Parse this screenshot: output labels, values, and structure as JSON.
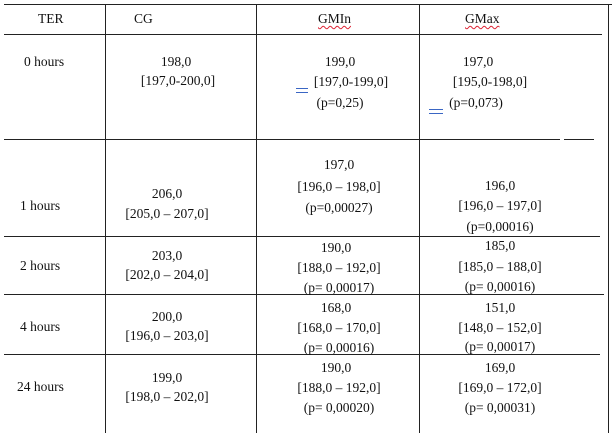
{
  "headers": {
    "ter": "TER",
    "cg": "CG",
    "gmin": "GMIn",
    "gmax": "GMax"
  },
  "rows": [
    {
      "ter": "0 hours",
      "cg": [
        "198,0",
        "[197,0-200,0]"
      ],
      "gmin": [
        "199,0",
        "[197,0-199,0]",
        "(p=0,25)"
      ],
      "gmax": [
        "197,0",
        "[195,0-198,0]",
        "(p=0,073)"
      ]
    },
    {
      "ter": "1 hours",
      "cg": [
        "206,0",
        "[205,0 – 207,0]"
      ],
      "gmin": [
        "197,0",
        "[196,0 – 198,0]",
        "(p=0,00027)"
      ],
      "gmax": [
        "196,0",
        "[196,0 – 197,0]",
        "(p=0,00016)"
      ]
    },
    {
      "ter": "2 hours",
      "cg": [
        "203,0",
        "[202,0 – 204,0]"
      ],
      "gmin": [
        "190,0",
        "[188,0 – 192,0]",
        "(p= 0,00017)"
      ],
      "gmax": [
        "185,0",
        "[185,0 – 188,0]",
        "(p= 0,00016)"
      ]
    },
    {
      "ter": "4 hours",
      "cg": [
        "200,0",
        "[196,0 – 203,0]"
      ],
      "gmin": [
        "168,0",
        "[168,0 – 170,0]",
        "(p= 0,00016)"
      ],
      "gmax": [
        "151,0",
        "[148,0 – 152,0]",
        "(p= 0,00017)"
      ]
    },
    {
      "ter": "24 hours",
      "cg": [
        "199,0",
        "[198,0 – 202,0]"
      ],
      "gmin": [
        "190,0",
        "[188,0 – 192,0]",
        "(p= 0,00020)"
      ],
      "gmax": [
        "169,0",
        "[169,0 – 172,0]",
        "(p= 0,00031)"
      ]
    }
  ]
}
